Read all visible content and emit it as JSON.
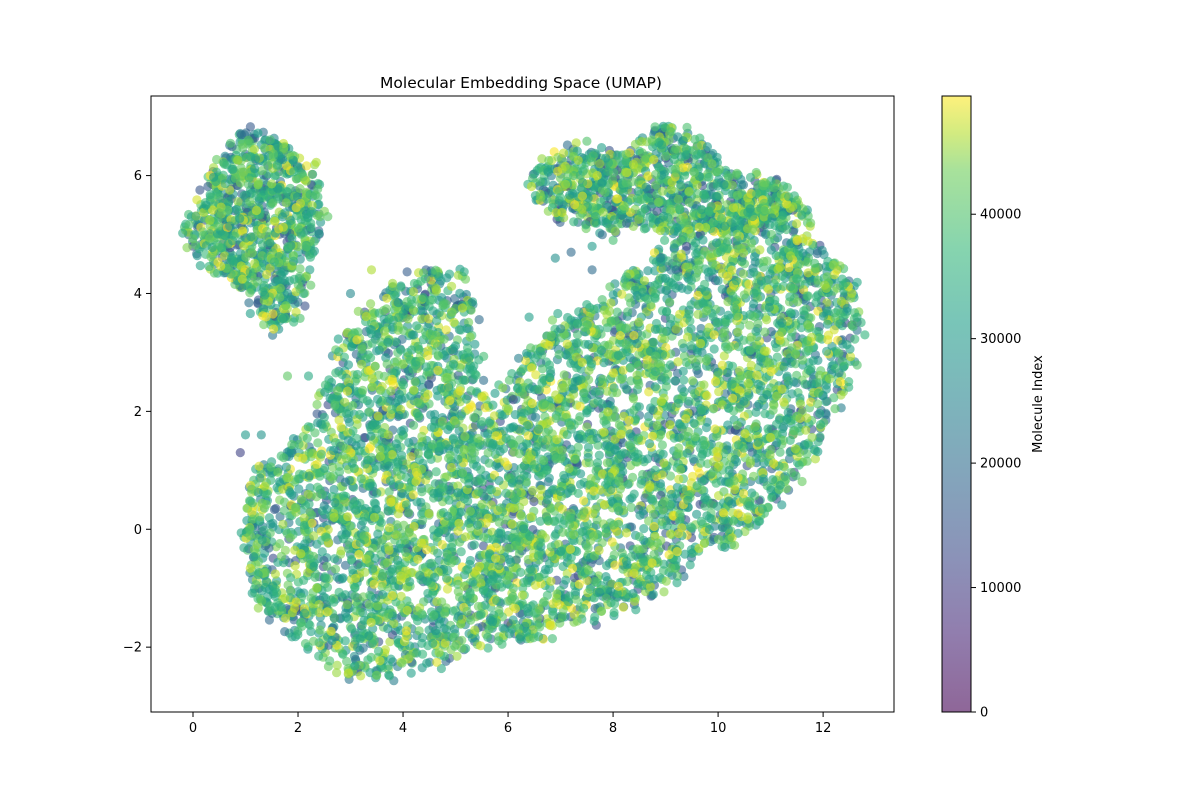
{
  "chart_data": {
    "type": "scatter",
    "title": "Molecular Embedding Space (UMAP)",
    "xlabel": "",
    "ylabel": "",
    "xlim": [
      -0.8,
      13.35
    ],
    "ylim": [
      -3.1,
      7.35
    ],
    "x_ticks": [
      0,
      2,
      4,
      6,
      8,
      10,
      12
    ],
    "y_ticks": [
      -2,
      0,
      2,
      4,
      6
    ],
    "x_tick_labels": [
      "0",
      "2",
      "4",
      "6",
      "8",
      "10",
      "12"
    ],
    "y_tick_labels": [
      "−2",
      "0",
      "2",
      "4",
      "6"
    ],
    "grid": false,
    "marker_alpha": 0.6,
    "colormap": "viridis",
    "colorbar": {
      "label": "Molecule Index",
      "range": [
        0,
        49500
      ],
      "ticks": [
        0,
        10000,
        20000,
        30000,
        40000
      ],
      "tick_labels": [
        "0",
        "10000",
        "20000",
        "30000",
        "40000"
      ]
    },
    "clusters": [
      {
        "name": "",
        "center": [
          1.45,
          5.25
        ],
        "extent": [
          [
            -0.2,
            2.7
          ],
          [
            3.3,
            6.85
          ]
        ]
      },
      {
        "name": "",
        "center": [
          8.7,
          5.9
        ],
        "extent": [
          [
            6.4,
            11.9
          ],
          [
            4.8,
            6.9
          ]
        ]
      },
      {
        "name": "",
        "center": [
          7.5,
          1.2
        ],
        "extent": [
          [
            0.9,
            12.7
          ],
          [
            -2.6,
            4.5
          ]
        ]
      }
    ],
    "series": [
      {
        "values_color_by": "Molecule Index",
        "point_count_approx": 50000
      }
    ]
  }
}
